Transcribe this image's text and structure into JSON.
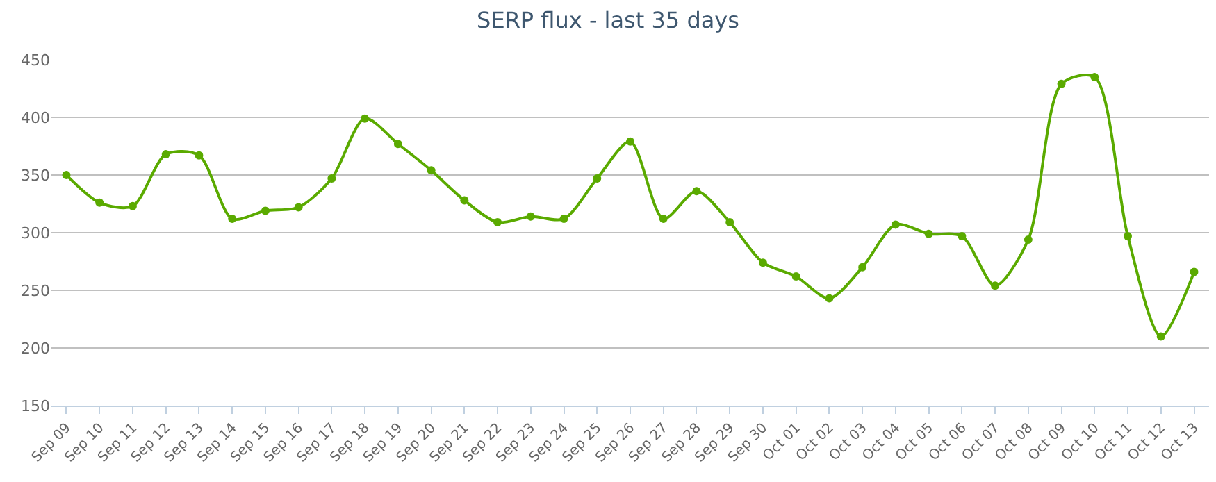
{
  "chart_data": {
    "type": "line",
    "title": "SERP flux - last 35 days",
    "categories": [
      "Sep 09",
      "Sep 10",
      "Sep 11",
      "Sep 12",
      "Sep 13",
      "Sep 14",
      "Sep 15",
      "Sep 16",
      "Sep 17",
      "Sep 18",
      "Sep 19",
      "Sep 20",
      "Sep 21",
      "Sep 22",
      "Sep 23",
      "Sep 24",
      "Sep 25",
      "Sep 26",
      "Sep 27",
      "Sep 28",
      "Sep 29",
      "Sep 30",
      "Oct 01",
      "Oct 02",
      "Oct 03",
      "Oct 04",
      "Oct 05",
      "Oct 06",
      "Oct 07",
      "Oct 08",
      "Oct 09",
      "Oct 10",
      "Oct 11",
      "Oct 12",
      "Oct 13"
    ],
    "series": [
      {
        "color": "#5aaa00",
        "values": [
          350,
          326,
          323,
          368,
          367,
          312,
          319,
          322,
          347,
          399,
          377,
          354,
          328,
          309,
          314,
          312,
          347,
          379,
          312,
          336,
          309,
          274,
          262,
          243,
          270,
          307,
          299,
          297,
          254,
          294,
          429,
          435,
          297,
          210,
          266
        ]
      }
    ],
    "ylim": [
      150,
      450
    ],
    "yticks": [
      150,
      200,
      250,
      300,
      350,
      400,
      450
    ],
    "grid": "y",
    "marker": "circle",
    "line_style": "solid"
  }
}
